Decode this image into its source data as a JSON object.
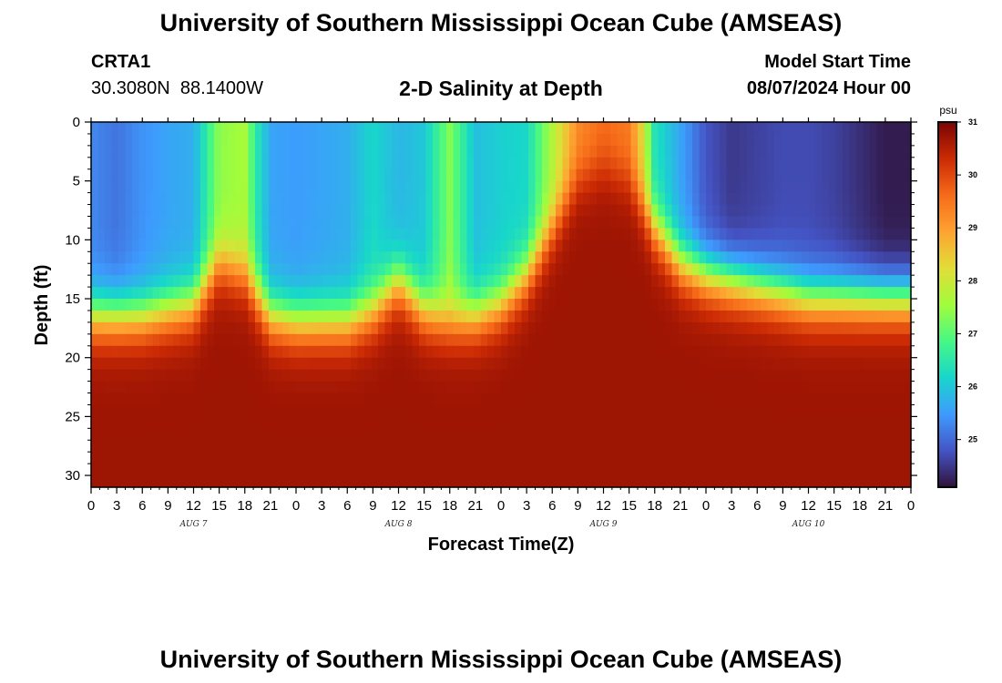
{
  "title": "University of Southern Mississippi Ocean Cube (AMSEAS)",
  "title_repeat": "University of Southern Mississippi Ocean Cube (AMSEAS)",
  "station": "CRTA1",
  "coords": "30.3080N  88.1400W",
  "subtitle": "2-D Salinity at Depth",
  "model_start_label": "Model Start Time",
  "model_start_value": "08/07/2024 Hour 00",
  "chart_data": {
    "type": "heatmap",
    "title": "2-D Salinity at Depth",
    "xlabel": "Forecast Time(Z)",
    "ylabel": "Depth (ft)",
    "x_tick_labels": [
      "0",
      "3",
      "6",
      "9",
      "12",
      "15",
      "18",
      "21",
      "0",
      "3",
      "6",
      "9",
      "12",
      "15",
      "18",
      "21",
      "0",
      "3",
      "6",
      "9",
      "12",
      "15",
      "18",
      "21",
      "0",
      "3",
      "6",
      "9",
      "12",
      "15",
      "18",
      "21",
      "0"
    ],
    "x_range_hours": [
      0,
      96
    ],
    "day_labels": [
      {
        "label": "AUG 7",
        "hour": 12
      },
      {
        "label": "AUG 8",
        "hour": 36
      },
      {
        "label": "AUG 9",
        "hour": 60
      },
      {
        "label": "AUG 10",
        "hour": 84
      }
    ],
    "y_ticks": [
      0,
      5,
      10,
      15,
      20,
      25,
      30
    ],
    "y_range_ft": [
      0,
      31
    ],
    "colorbar": {
      "unit": "psu",
      "range": [
        24.1,
        31
      ],
      "tick_labels": [
        31,
        30,
        29,
        28,
        27,
        26,
        25
      ],
      "colors": [
        "#30123b",
        "#4454c4",
        "#3e9bfe",
        "#18d6cb",
        "#46f884",
        "#a2fc3c",
        "#e1dd37",
        "#fea331",
        "#f66b19",
        "#cb2a04",
        "#7a0403"
      ]
    },
    "surface_salinity_by_hour": [
      [
        0,
        25.3
      ],
      [
        3,
        25.1
      ],
      [
        6,
        25.4
      ],
      [
        9,
        25.6
      ],
      [
        12,
        25.7
      ],
      [
        15,
        27.4
      ],
      [
        18,
        27.6
      ],
      [
        19.5,
        26.4
      ],
      [
        21,
        25.6
      ],
      [
        24,
        25.5
      ],
      [
        27,
        25.6
      ],
      [
        30,
        25.7
      ],
      [
        33,
        26.2
      ],
      [
        36,
        25.8
      ],
      [
        39,
        26.0
      ],
      [
        42,
        27.3
      ],
      [
        45,
        25.9
      ],
      [
        48,
        26.1
      ],
      [
        51,
        26.2
      ],
      [
        54,
        27.7
      ],
      [
        57,
        29.2
      ],
      [
        60,
        29.6
      ],
      [
        63,
        29.4
      ],
      [
        64.5,
        28.3
      ],
      [
        66,
        26.4
      ],
      [
        69,
        25.6
      ],
      [
        72,
        24.8
      ],
      [
        75,
        24.5
      ],
      [
        78,
        24.6
      ],
      [
        81,
        24.7
      ],
      [
        84,
        24.7
      ],
      [
        87,
        24.6
      ],
      [
        90,
        24.4
      ],
      [
        93,
        24.2
      ],
      [
        96,
        24.2
      ]
    ],
    "halocline_depth_ft_by_hour": [
      [
        0,
        16.5
      ],
      [
        3,
        16.5
      ],
      [
        6,
        16.5
      ],
      [
        9,
        16.0
      ],
      [
        12,
        15.5
      ],
      [
        15,
        12.0
      ],
      [
        18,
        13.0
      ],
      [
        21,
        16.5
      ],
      [
        24,
        17.0
      ],
      [
        27,
        17.0
      ],
      [
        30,
        17.0
      ],
      [
        33,
        16.0
      ],
      [
        36,
        13.5
      ],
      [
        39,
        16.0
      ],
      [
        42,
        17.0
      ],
      [
        45,
        16.5
      ],
      [
        48,
        15.5
      ],
      [
        51,
        13.0
      ],
      [
        54,
        9.0
      ],
      [
        57,
        5.0
      ],
      [
        60,
        4.0
      ],
      [
        63,
        5.0
      ],
      [
        66,
        9.0
      ],
      [
        69,
        12.0
      ],
      [
        72,
        13.0
      ],
      [
        75,
        13.5
      ],
      [
        78,
        14.0
      ],
      [
        81,
        14.5
      ],
      [
        84,
        15.0
      ],
      [
        87,
        15.0
      ],
      [
        90,
        15.0
      ],
      [
        93,
        15.0
      ],
      [
        96,
        15.0
      ]
    ],
    "bottom_salinity": 30.7
  }
}
